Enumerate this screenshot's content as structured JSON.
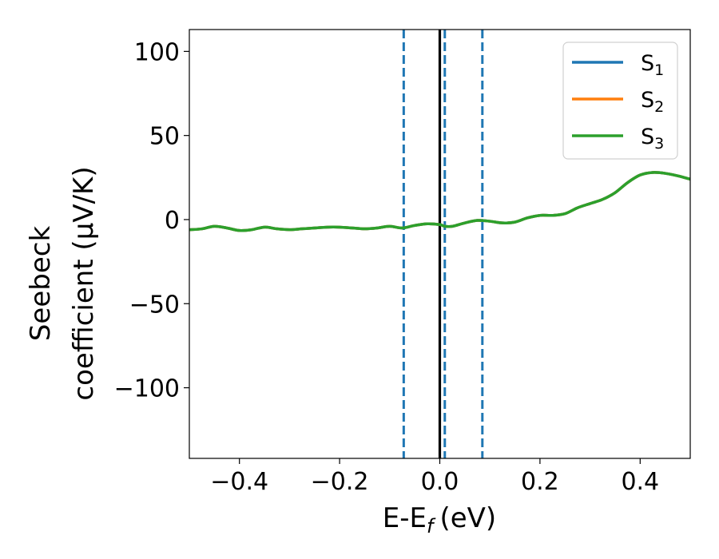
{
  "chart_data": {
    "type": "line",
    "xlabel": "E-E",
    "xlabel_sub": "f",
    "xlabel_unit": "(eV)",
    "ylabel_line1": "Seebeck",
    "ylabel_line2": "coefficient  (μV/K)",
    "xlim": [
      -0.5,
      0.5
    ],
    "ylim": [
      -142,
      113
    ],
    "x_ticks": [
      -0.4,
      -0.2,
      0.0,
      0.2,
      0.4
    ],
    "x_tick_labels": [
      "−0.4",
      "−0.2",
      "0.0",
      "0.2",
      "0.4"
    ],
    "y_ticks": [
      100,
      50,
      0,
      -50,
      -100
    ],
    "y_tick_labels": [
      "100",
      "50",
      "0",
      "−50",
      "−100"
    ],
    "grid": false,
    "legend_position": "top-right",
    "x": [
      -0.5,
      -0.475,
      -0.45,
      -0.425,
      -0.4,
      -0.375,
      -0.35,
      -0.325,
      -0.3,
      -0.275,
      -0.25,
      -0.225,
      -0.2,
      -0.175,
      -0.15,
      -0.125,
      -0.1,
      -0.075,
      -0.05,
      -0.025,
      0.0,
      0.01,
      0.025,
      0.05,
      0.075,
      0.1,
      0.125,
      0.15,
      0.175,
      0.2,
      0.225,
      0.25,
      0.275,
      0.3,
      0.325,
      0.35,
      0.375,
      0.4,
      0.425,
      0.45,
      0.475,
      0.5
    ],
    "series": [
      {
        "name": "S",
        "sub": "1",
        "color": "#1f77b4",
        "values": [
          -6,
          -5.5,
          -4,
          -5,
          -6.5,
          -6,
          -4.5,
          -5.5,
          -6,
          -5.5,
          -5,
          -4.5,
          -4.5,
          -5,
          -5.5,
          -5,
          -4,
          -5,
          -3.5,
          -2.5,
          -3,
          -4,
          -4,
          -2,
          -0.5,
          -1,
          -2,
          -1.5,
          1,
          2.5,
          2.5,
          3.5,
          7,
          9.5,
          12,
          16,
          22,
          26.5,
          28,
          27.5,
          26,
          24
        ]
      },
      {
        "name": "S",
        "sub": "2",
        "color": "#ff7f0e",
        "values": [
          -6,
          -5.5,
          -4,
          -5,
          -6.5,
          -6,
          -4.5,
          -5.5,
          -6,
          -5.5,
          -5,
          -4.5,
          -4.5,
          -5,
          -5.5,
          -5,
          -4,
          -5,
          -3.5,
          -2.5,
          -3,
          -4,
          -4,
          -2,
          -0.5,
          -1,
          -2,
          -1.5,
          1,
          2.5,
          2.5,
          3.5,
          7,
          9.5,
          12,
          16,
          22,
          26.5,
          28,
          27.5,
          26,
          24
        ]
      },
      {
        "name": "S",
        "sub": "3",
        "color": "#2ca02c",
        "values": [
          -6,
          -5.5,
          -4,
          -5,
          -6.5,
          -6,
          -4.5,
          -5.5,
          -6,
          -5.5,
          -5,
          -4.5,
          -4.5,
          -5,
          -5.5,
          -5,
          -4,
          -5,
          -3.5,
          -2.5,
          -3,
          -4,
          -4,
          -2,
          -0.5,
          -1,
          -2,
          -1.5,
          1,
          2.5,
          2.5,
          3.5,
          7,
          9.5,
          12,
          16,
          22,
          26.5,
          28,
          27.5,
          26,
          24
        ]
      }
    ],
    "vertical_lines": [
      {
        "x": 0.0,
        "style": "solid",
        "color": "#000000"
      },
      {
        "x": -0.072,
        "style": "dashed",
        "color": "#1f77b4"
      },
      {
        "x": 0.01,
        "style": "dashed",
        "color": "#1f77b4"
      },
      {
        "x": 0.085,
        "style": "dashed",
        "color": "#1f77b4"
      }
    ]
  }
}
